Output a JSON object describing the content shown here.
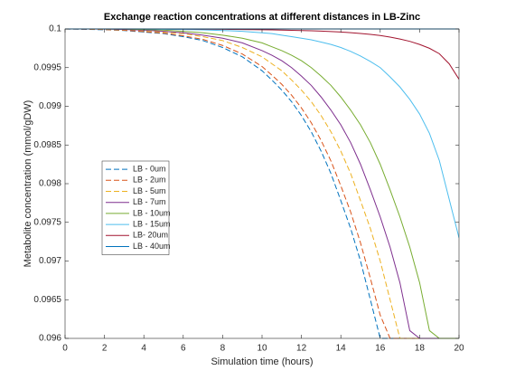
{
  "chart_data": {
    "type": "line",
    "title": "Exchange reaction concentrations at different distances in LB-Zinc",
    "xlabel": "Simulation time (hours)",
    "ylabel": "Metabolite concentration (mmol/gDW)",
    "x": [
      0,
      1,
      2,
      3,
      4,
      5,
      6,
      7,
      8,
      9,
      10,
      10.5,
      11,
      11.5,
      12,
      12.5,
      13,
      13.5,
      14,
      14.5,
      15,
      15.5,
      16,
      16.5,
      17,
      17.5,
      18,
      18.5,
      19,
      19.5,
      20
    ],
    "xlim": [
      0,
      20
    ],
    "xticks": [
      0,
      2,
      4,
      6,
      8,
      10,
      12,
      14,
      16,
      18,
      20
    ],
    "ylim": [
      0.096,
      0.1
    ],
    "yticks": [
      0.096,
      0.0965,
      0.097,
      0.0975,
      0.098,
      0.0985,
      0.099,
      0.0995,
      0.1
    ],
    "grid": false,
    "legend": "west",
    "series": [
      {
        "name": "LB - 0um",
        "color": "#0072BD",
        "linestyle": "dashed",
        "values": [
          0.1,
          0.099995,
          0.09999,
          0.09998,
          0.09996,
          0.09994,
          0.0999,
          0.09985,
          0.09976,
          0.09964,
          0.09946,
          0.09934,
          0.09921,
          0.09906,
          0.09888,
          0.09867,
          0.09842,
          0.09813,
          0.09778,
          0.09742,
          0.097,
          0.0965,
          0.096,
          0.096,
          0.096,
          0.096,
          0.096,
          0.096,
          0.096,
          0.096,
          0.096
        ]
      },
      {
        "name": "LB - 2um",
        "color": "#D95319",
        "linestyle": "dashed",
        "values": [
          0.1,
          0.099997,
          0.099992,
          0.099983,
          0.099966,
          0.099946,
          0.099912,
          0.099865,
          0.099787,
          0.099676,
          0.099514,
          0.099403,
          0.099285,
          0.099144,
          0.098979,
          0.098787,
          0.098558,
          0.098292,
          0.097972,
          0.097633,
          0.097234,
          0.096776,
          0.0963,
          0.096,
          0.096,
          0.096,
          0.096,
          0.096,
          0.096,
          0.096,
          0.096
        ]
      },
      {
        "name": "LB - 5um",
        "color": "#EDB120",
        "linestyle": "dashed",
        "values": [
          0.1,
          0.1,
          0.099995,
          0.09999,
          0.09998,
          0.09996,
          0.09994,
          0.0999,
          0.09985,
          0.09976,
          0.09964,
          0.09955,
          0.09946,
          0.09934,
          0.09921,
          0.09906,
          0.09888,
          0.09867,
          0.09842,
          0.09813,
          0.09778,
          0.09742,
          0.097,
          0.0965,
          0.096,
          0.096,
          0.096,
          0.096,
          0.096,
          0.096,
          0.096
        ]
      },
      {
        "name": "LB - 7um",
        "color": "#7E2F8E",
        "linestyle": "solid",
        "values": [
          0.1,
          0.1,
          0.099998,
          0.099993,
          0.099986,
          0.09997,
          0.09995,
          0.09992,
          0.09988,
          0.09982,
          0.09972,
          0.09966,
          0.09959,
          0.0995,
          0.09939,
          0.09927,
          0.09912,
          0.09895,
          0.09876,
          0.09853,
          0.09825,
          0.09792,
          0.09757,
          0.09718,
          0.09672,
          0.0961,
          0.096,
          0.096,
          0.096,
          0.096,
          0.096
        ]
      },
      {
        "name": "LB - 10um",
        "color": "#77AC30",
        "linestyle": "solid",
        "values": [
          0.1,
          0.1,
          0.1,
          0.099998,
          0.099993,
          0.099986,
          0.09997,
          0.09995,
          0.09992,
          0.09988,
          0.09982,
          0.09977,
          0.09972,
          0.09966,
          0.09959,
          0.0995,
          0.09939,
          0.09927,
          0.09912,
          0.09895,
          0.09876,
          0.09853,
          0.09825,
          0.09792,
          0.09757,
          0.09718,
          0.09672,
          0.0961,
          0.096,
          0.096,
          0.096
        ]
      },
      {
        "name": "LB - 15um",
        "color": "#4DBEEE",
        "linestyle": "solid",
        "values": [
          0.1,
          0.1,
          0.1,
          0.1,
          0.099998,
          0.099996,
          0.099993,
          0.099988,
          0.09998,
          0.09997,
          0.09995,
          0.09994,
          0.09992,
          0.0999,
          0.09988,
          0.09986,
          0.09983,
          0.0998,
          0.09976,
          0.09971,
          0.09965,
          0.09958,
          0.0995,
          0.09938,
          0.09925,
          0.09909,
          0.0989,
          0.09865,
          0.0983,
          0.0978,
          0.0973
        ]
      },
      {
        "name": "LB- 20um",
        "color": "#A2142F",
        "linestyle": "solid",
        "values": [
          0.1,
          0.1,
          0.1,
          0.1,
          0.1,
          0.1,
          0.099998,
          0.099997,
          0.099995,
          0.099993,
          0.09999,
          0.099988,
          0.099986,
          0.099983,
          0.09998,
          0.099976,
          0.099972,
          0.099967,
          0.09996,
          0.099952,
          0.099942,
          0.09993,
          0.099915,
          0.099895,
          0.09987,
          0.09984,
          0.0998,
          0.09975,
          0.09968,
          0.09955,
          0.09935
        ]
      },
      {
        "name": "LB - 40um",
        "color": "#0072BD",
        "linestyle": "solid",
        "values": [
          0.1,
          0.1,
          0.1,
          0.1,
          0.1,
          0.1,
          0.1,
          0.1,
          0.1,
          0.1,
          0.1,
          0.1,
          0.1,
          0.1,
          0.1,
          0.1,
          0.1,
          0.1,
          0.1,
          0.1,
          0.1,
          0.1,
          0.1,
          0.1,
          0.1,
          0.1,
          0.1,
          0.1,
          0.1,
          0.1,
          0.1
        ]
      }
    ]
  }
}
